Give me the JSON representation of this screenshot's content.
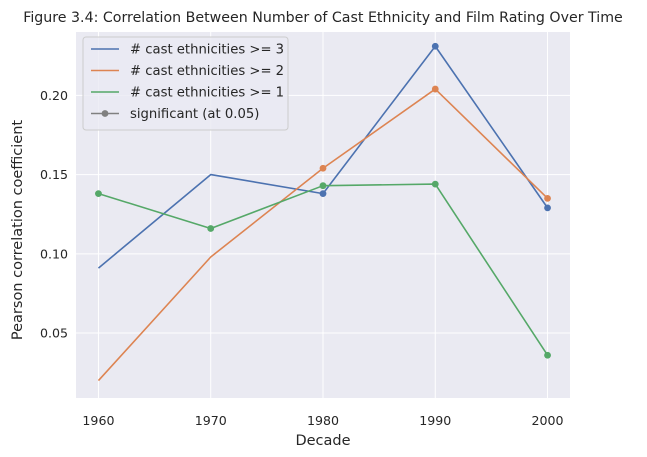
{
  "chart_data": {
    "type": "line",
    "title": "Figure 3.4: Correlation Between Number of Cast Ethnicity and Film Rating Over Time",
    "xlabel": "Decade",
    "ylabel": "Pearson correlation coefficient",
    "x": [
      1960,
      1970,
      1980,
      1990,
      2000
    ],
    "x_ticks": [
      "1960",
      "1970",
      "1980",
      "1990",
      "2000"
    ],
    "y_ticks": [
      "0.05",
      "0.10",
      "0.15",
      "0.20"
    ],
    "xlim": [
      1958,
      2002
    ],
    "ylim": [
      0.009,
      0.24
    ],
    "grid": true,
    "legend_position": "top-left",
    "series": [
      {
        "name": "# cast ethnicities >= 3",
        "color": "#4c72b0",
        "values": [
          0.091,
          0.15,
          0.138,
          0.231,
          0.129
        ],
        "significant": [
          false,
          false,
          true,
          true,
          true
        ]
      },
      {
        "name": "# cast ethnicities >= 2",
        "color": "#dd8452",
        "values": [
          0.02,
          0.098,
          0.154,
          0.204,
          0.135
        ],
        "significant": [
          false,
          false,
          true,
          true,
          true
        ]
      },
      {
        "name": "# cast ethnicities >= 1",
        "color": "#55a868",
        "values": [
          0.138,
          0.116,
          0.143,
          0.144,
          0.036
        ],
        "significant": [
          true,
          true,
          true,
          true,
          true
        ]
      }
    ],
    "marker_legend": {
      "name": "significant (at 0.05)",
      "color": "#808080"
    }
  }
}
